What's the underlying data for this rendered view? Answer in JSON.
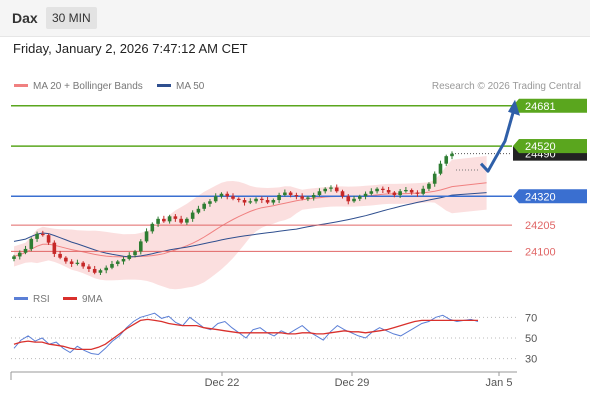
{
  "header": {
    "symbol": "Dax",
    "interval": "30 MIN"
  },
  "datetime": "Friday, January 2, 2026 7:47:12 AM CET",
  "credit": "Research © 2026 Trading Central",
  "colors": {
    "resistance": "#5aa61e",
    "pivot": "#3a6fd0",
    "support": "#e06666",
    "ma20": "#f08080",
    "band": "#f9c9c9",
    "ma50": "#2f4f8f",
    "bull": "#2e7d32",
    "bear": "#c62828",
    "rsi": "#5b7fd6",
    "rsi_ma": "#d9302c",
    "arrow": "#2f5fa8",
    "last_price_tag": "#222222"
  },
  "chart_data": [
    {
      "type": "candlestick",
      "title": "",
      "legend": [
        {
          "name": "MA 20 + Bollinger Bands",
          "color": "#f08080"
        },
        {
          "name": "MA 50",
          "color": "#2f4f8f"
        }
      ],
      "ylim": [
        23990,
        24720
      ],
      "x_ticks": [
        "Dec 22",
        "Dec 29",
        "Jan 5"
      ],
      "levels": [
        {
          "value": 24681,
          "label": "24681",
          "role": "resistance-2"
        },
        {
          "value": 24520,
          "label": "24520",
          "role": "resistance-1"
        },
        {
          "value": 24320,
          "label": "24320",
          "role": "pivot"
        },
        {
          "value": 24205,
          "label": "24205",
          "role": "support-1"
        },
        {
          "value": 24100,
          "label": "24100",
          "role": "support-2"
        }
      ],
      "last_price": {
        "value": 24490,
        "label": "24490"
      },
      "scenario_path": [
        24450,
        24420,
        24470,
        24540,
        24681
      ],
      "close": [
        24080,
        24095,
        24110,
        24150,
        24170,
        24165,
        24135,
        24090,
        24075,
        24060,
        24050,
        24055,
        24040,
        24030,
        24015,
        24025,
        24035,
        24050,
        24060,
        24070,
        24085,
        24100,
        24140,
        24180,
        24210,
        24230,
        24220,
        24240,
        24230,
        24215,
        24230,
        24255,
        24270,
        24290,
        24300,
        24320,
        24330,
        24320,
        24310,
        24305,
        24295,
        24300,
        24310,
        24305,
        24295,
        24305,
        24325,
        24335,
        24325,
        24320,
        24310,
        24315,
        24325,
        24340,
        24350,
        24355,
        24340,
        24320,
        24300,
        24310,
        24320,
        24330,
        24340,
        24350,
        24345,
        24335,
        24325,
        24340,
        24345,
        24335,
        24330,
        24350,
        24370,
        24410,
        24450,
        24480,
        24490
      ],
      "rsi": {
        "ticks": [
          70,
          50,
          30
        ],
        "legend": [
          {
            "name": "RSI",
            "color": "#5b7fd6"
          },
          {
            "name": "9MA",
            "color": "#d9302c"
          }
        ],
        "values": [
          40,
          48,
          52,
          47,
          50,
          44,
          46,
          40,
          36,
          42,
          38,
          35,
          34,
          40,
          47,
          52,
          60,
          66,
          70,
          72,
          74,
          69,
          71,
          65,
          62,
          70,
          65,
          60,
          58,
          64,
          66,
          60,
          55,
          50,
          58,
          60,
          55,
          52,
          57,
          54,
          58,
          62,
          56,
          52,
          48,
          56,
          62,
          58,
          55,
          52,
          50,
          56,
          60,
          57,
          54,
          52,
          56,
          60,
          64,
          66,
          70,
          72,
          68,
          66,
          67,
          68,
          66
        ],
        "ma": [
          44,
          46,
          47,
          46,
          46,
          44,
          43,
          42,
          40,
          39,
          39,
          39,
          41,
          44,
          49,
          54,
          59,
          63,
          67,
          68,
          67,
          66,
          64,
          63,
          62,
          62,
          62,
          60,
          59,
          58,
          57,
          56,
          55,
          55,
          55,
          55,
          55,
          55,
          55,
          54,
          54,
          55,
          55,
          54,
          54,
          55,
          56,
          57,
          56,
          56,
          55,
          56,
          57,
          58,
          60,
          62,
          64,
          66,
          67,
          67,
          67,
          67,
          67,
          67,
          67,
          67,
          67
        ]
      }
    }
  ]
}
